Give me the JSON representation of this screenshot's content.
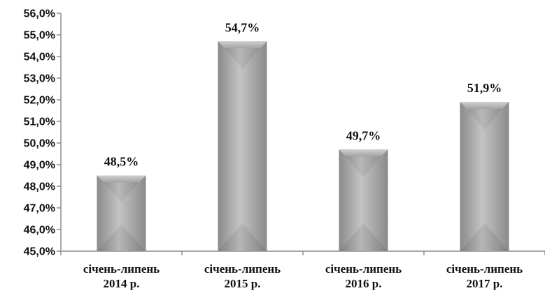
{
  "chart_data": {
    "type": "bar",
    "categories": [
      [
        "січень-липень",
        "2014 р."
      ],
      [
        "січень-липень",
        "2015 р."
      ],
      [
        "січень-липень",
        "2016 р."
      ],
      [
        "січень-липень",
        "2017 р."
      ]
    ],
    "values": [
      48.5,
      54.7,
      49.7,
      51.9
    ],
    "data_labels": [
      "48,5%",
      "54,7%",
      "49,7%",
      "51,9%"
    ],
    "ylim": [
      45.0,
      56.0
    ],
    "yticks": [
      45.0,
      46.0,
      47.0,
      48.0,
      49.0,
      50.0,
      51.0,
      52.0,
      53.0,
      54.0,
      55.0,
      56.0
    ],
    "ytick_labels": [
      "45,0%",
      "46,0%",
      "47,0%",
      "48,0%",
      "49,0%",
      "50,0%",
      "51,0%",
      "52,0%",
      "53,0%",
      "54,0%",
      "55,0%",
      "56,0%"
    ],
    "grid": false,
    "legend": "none",
    "colors": {
      "bar_face": "#a3a3a3",
      "bar_light": "#c4c4c4",
      "bar_dark": "#8a8a8a",
      "axis": "#8c8c8c"
    }
  }
}
